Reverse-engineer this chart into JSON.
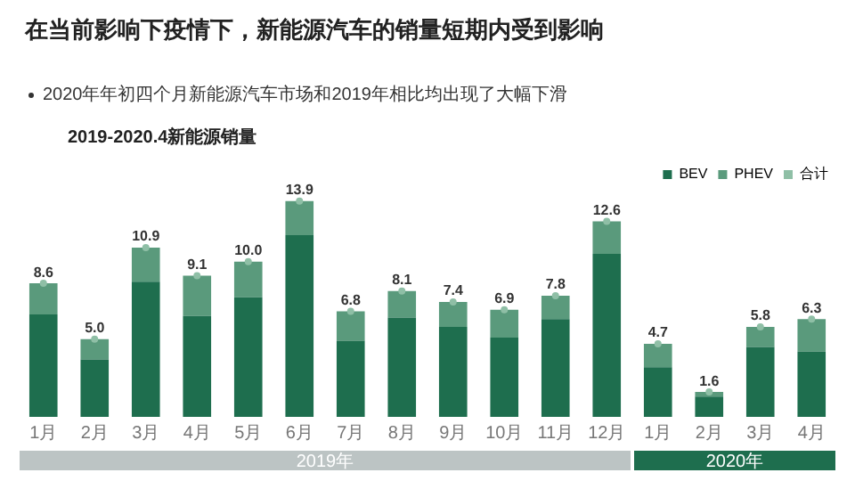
{
  "chart_data": {
    "type": "bar",
    "title": "在当前影响下疫情下，新能源汽车的销量短期内受到影响",
    "subtitle": "2020年年初四个月新能源汽车市场和2019年相比均出现了大幅下滑",
    "annotations": [
      "2019-2020.4新能源销量",
      "2019年",
      "2020年"
    ],
    "categories": [
      "1月",
      "2月",
      "3月",
      "4月",
      "5月",
      "6月",
      "7月",
      "8月",
      "9月",
      "10月",
      "11月",
      "12月",
      "1月",
      "2月",
      "3月",
      "4月"
    ],
    "stacked": true,
    "legend": "top right",
    "marker": "circle",
    "tick_labels": "x",
    "series": [
      {
        "name": "BEV",
        "color": "#1e6e4e",
        "values": [
          6.6,
          3.7,
          8.7,
          6.5,
          7.7,
          11.7,
          4.9,
          6.4,
          5.8,
          5.1,
          6.3,
          10.5,
          3.2,
          1.3,
          4.5,
          4.2
        ]
      },
      {
        "name": "PHEV",
        "color": "#5a9a7c",
        "values": [
          2.0,
          1.3,
          2.2,
          2.6,
          2.3,
          2.2,
          1.9,
          1.7,
          1.6,
          1.8,
          1.5,
          2.1,
          1.5,
          0.3,
          1.3,
          2.1
        ]
      },
      {
        "name": "合计",
        "type": "scatter",
        "color": "#8fbfa6",
        "values": [
          8.6,
          5.0,
          10.9,
          9.1,
          10.0,
          13.9,
          6.8,
          8.1,
          7.4,
          6.9,
          7.8,
          12.6,
          4.7,
          1.6,
          5.8,
          6.3
        ],
        "value_labels": [
          "8.6",
          "5.0",
          "10.9",
          "9.1",
          "10.0",
          "13.9",
          "6.8",
          "8.1",
          "7.4",
          "6.9",
          "7.8",
          "12.6",
          "4.7",
          "1.6",
          "5.8",
          "6.3"
        ]
      }
    ]
  }
}
